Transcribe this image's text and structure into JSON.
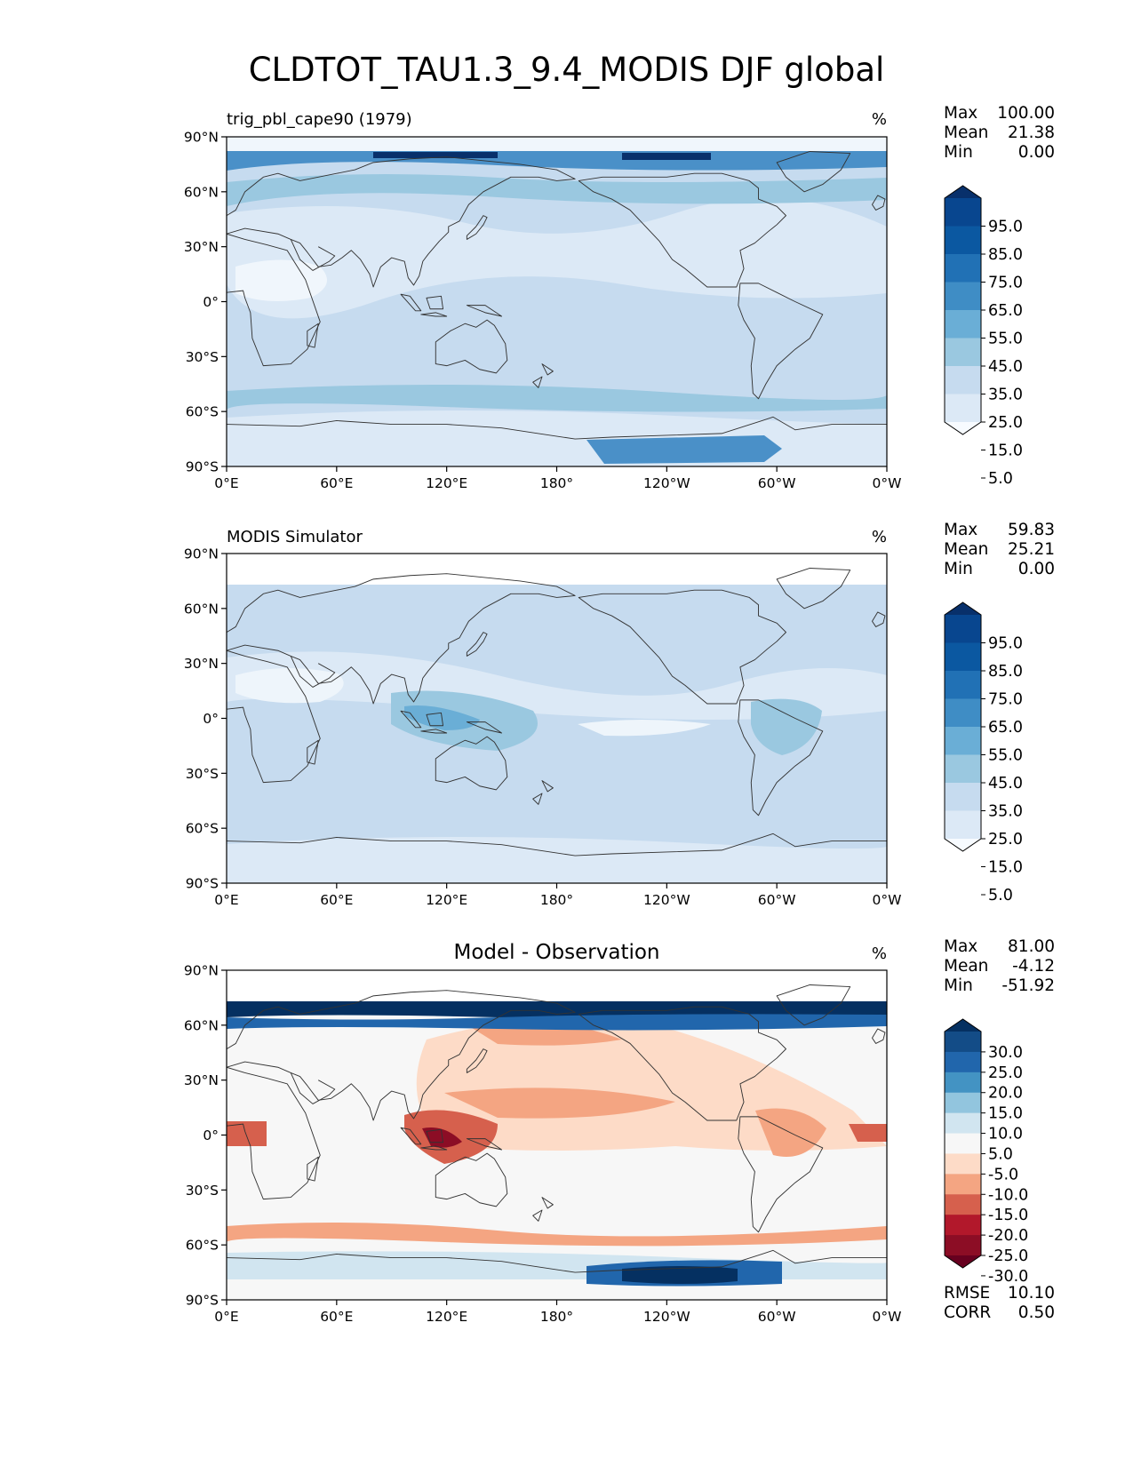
{
  "figure": {
    "title": "CLDTOT_TAU1.3_9.4_MODIS DJF global"
  },
  "chart_data": [
    {
      "type": "heatmap",
      "panel": "test",
      "title": "trig_pbl_cape90 (1979)",
      "units": "%",
      "x_ticks": [
        "0°E",
        "60°E",
        "120°E",
        "180°",
        "120°W",
        "60°W",
        "0°W"
      ],
      "y_ticks": [
        "90°N",
        "60°N",
        "30°N",
        "0°",
        "30°S",
        "60°S",
        "90°S"
      ],
      "xlim": [
        0,
        360
      ],
      "ylim": [
        -90,
        90
      ],
      "stats": [
        {
          "label": "Max",
          "value": "100.00"
        },
        {
          "label": "Mean",
          "value": "21.38"
        },
        {
          "label": "Min",
          "value": "0.00"
        }
      ],
      "colorbar": {
        "labels": [
          "95.0",
          "85.0",
          "75.0",
          "65.0",
          "55.0",
          "45.0",
          "35.0",
          "25.0",
          "15.0",
          "5.0"
        ],
        "colors": [
          "#08306b",
          "#08468f",
          "#0b58a1",
          "#2171b5",
          "#3f8dc5",
          "#6aaed6",
          "#9ac8e0",
          "#c6dbef",
          "#dce9f6",
          "#f7fbff"
        ]
      },
      "palette": {
        "very_low": "#f0f6fc",
        "low": "#dce9f6",
        "mid": "#c6dbef",
        "high": "#9ac8e0",
        "very_high": "#4a90c8",
        "extreme": "#08306b"
      }
    },
    {
      "type": "heatmap",
      "panel": "reference",
      "title": "MODIS Simulator",
      "units": "%",
      "x_ticks": [
        "0°E",
        "60°E",
        "120°E",
        "180°",
        "120°W",
        "60°W",
        "0°W"
      ],
      "y_ticks": [
        "90°N",
        "60°N",
        "30°N",
        "0°",
        "30°S",
        "60°S",
        "90°S"
      ],
      "xlim": [
        0,
        360
      ],
      "ylim": [
        -90,
        90
      ],
      "stats": [
        {
          "label": "Max",
          "value": "59.83"
        },
        {
          "label": "Mean",
          "value": "25.21"
        },
        {
          "label": "Min",
          "value": "0.00"
        }
      ],
      "colorbar": {
        "labels": [
          "95.0",
          "85.0",
          "75.0",
          "65.0",
          "55.0",
          "45.0",
          "35.0",
          "25.0",
          "15.0",
          "5.0"
        ],
        "colors": [
          "#08306b",
          "#08468f",
          "#0b58a1",
          "#2171b5",
          "#3f8dc5",
          "#6aaed6",
          "#9ac8e0",
          "#c6dbef",
          "#dce9f6",
          "#f7fbff"
        ]
      },
      "palette": {
        "very_low": "#eef5fb",
        "low": "#dce9f6",
        "mid": "#c6dbef",
        "high": "#9ac8e0",
        "very_high": "#6aaed6",
        "extreme": "#3f8dc5"
      }
    },
    {
      "type": "heatmap",
      "panel": "difference",
      "title": "Model - Observation",
      "units": "%",
      "x_ticks": [
        "0°E",
        "60°E",
        "120°E",
        "180°",
        "120°W",
        "60°W",
        "0°W"
      ],
      "y_ticks": [
        "90°N",
        "60°N",
        "30°N",
        "0°",
        "30°S",
        "60°S",
        "90°S"
      ],
      "xlim": [
        0,
        360
      ],
      "ylim": [
        -90,
        90
      ],
      "stats": [
        {
          "label": "Max",
          "value": "81.00"
        },
        {
          "label": "Mean",
          "value": "-4.12"
        },
        {
          "label": "Min",
          "value": "-51.92"
        }
      ],
      "metrics": [
        {
          "label": "RMSE",
          "value": "10.10"
        },
        {
          "label": "CORR",
          "value": "0.50"
        }
      ],
      "colorbar": {
        "labels": [
          "30.0",
          "25.0",
          "20.0",
          "15.0",
          "10.0",
          "5.0",
          "-5.0",
          "-10.0",
          "-15.0",
          "-20.0",
          "-25.0",
          "-30.0"
        ],
        "colors": [
          "#053061",
          "#134c87",
          "#2166ac",
          "#4393c3",
          "#92c5de",
          "#d1e5f0",
          "#f7f7f7",
          "#fddbc7",
          "#f4a582",
          "#d6604d",
          "#b2182b",
          "#8c0d25",
          "#67001f"
        ]
      },
      "palette": {
        "neutral": "#f7f7f7",
        "pos_light": "#d1e5f0",
        "pos_mid": "#92c5de",
        "pos_strong": "#2166ac",
        "pos_extreme": "#053061",
        "neg_light": "#fddbc7",
        "neg_mid": "#f4a582",
        "neg_strong": "#d6604d",
        "neg_extreme": "#8c0d25"
      }
    }
  ]
}
